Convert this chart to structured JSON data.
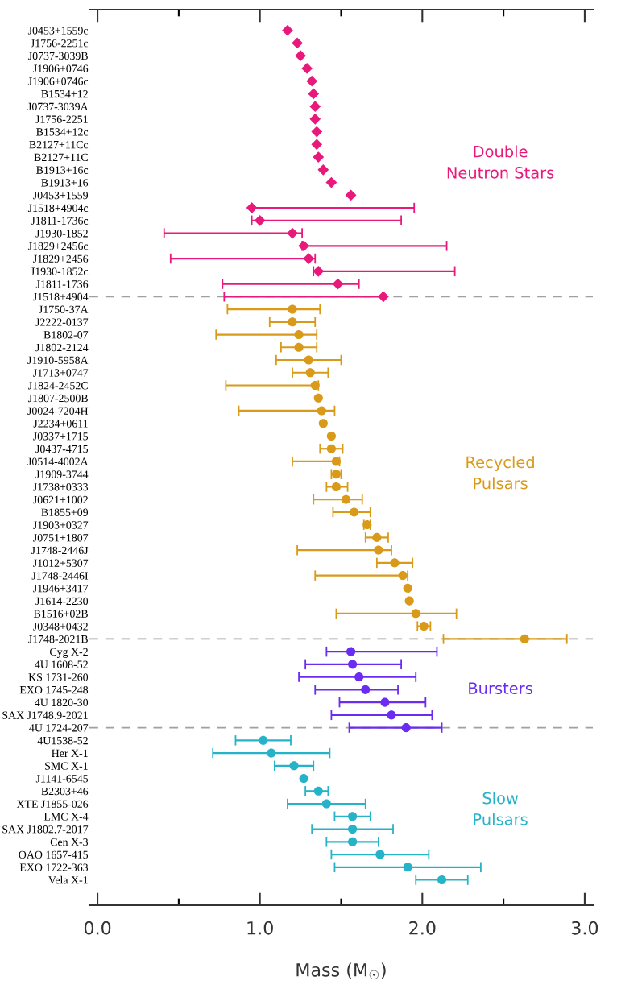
{
  "chart_data": {
    "type": "scatter",
    "orientation": "horizontal",
    "xlabel": "Mass (M$_{☉}$)",
    "categories": [
      "J0453+1559c",
      "J1756-2251c",
      "J0737-3039B",
      "J1906+0746",
      "J1906+0746c",
      "B1534+12",
      "J0737-3039A",
      "J1756-2251",
      "B1534+12c",
      "B2127+11Cc",
      "B2127+11C",
      "B1913+16c",
      "B1913+16",
      "J0453+1559",
      "J1518+4904c",
      "J1811-1736c",
      "J1930-1852",
      "J1829+2456c",
      "J1829+2456",
      "J1930-1852c",
      "J1811-1736",
      "J1518+4904",
      "J1750-37A",
      "J2222-0137",
      "B1802-07",
      "J1802-2124",
      "J1910-5958A",
      "J1713+0747",
      "J1824-2452C",
      "J1807-2500B",
      "J0024-7204H",
      "J2234+0611",
      "J0337+1715",
      "J0437-4715",
      "J0514-4002A",
      "J1909-3744",
      "J1738+0333",
      "J0621+1002",
      "B1855+09",
      "J1903+0327",
      "J0751+1807",
      "J1748-2446J",
      "J1012+5307",
      "J1748-2446I",
      "J1946+3417",
      "J1614-2230",
      "B1516+02B",
      "J0348+0432",
      "J1748-2021B",
      "Cyg X-2",
      "4U 1608-52",
      "KS 1731-260",
      "EXO 1745-248",
      "4U 1820-30",
      "SAX J1748.9-2021",
      "4U 1724-207",
      "4U1538-52",
      "Her X-1",
      "SMC X-1",
      "J1141-6545",
      "B2303+46",
      "XTE J1855-026",
      "LMC X-4",
      "SAX J1802.7-2017",
      "Cen X-3",
      "OAO 1657-415",
      "EXO 1722-363",
      "Vela X-1"
    ],
    "xlim": [
      -0.05,
      3.05
    ],
    "xticks": [
      {
        "value": 0,
        "label": "0.0"
      },
      {
        "value": 0.5,
        "label": null
      },
      {
        "value": 1,
        "label": "1.0"
      },
      {
        "value": 1.5,
        "label": null
      },
      {
        "value": 2,
        "label": "2.0"
      },
      {
        "value": 2.5,
        "label": null
      },
      {
        "value": 3,
        "label": "3.0"
      }
    ],
    "grid": false,
    "legend": false,
    "ref_lines": [
      {
        "axis": "y",
        "value": "J1518+4904",
        "color": "#a0a0a0",
        "line_style": "dashed"
      },
      {
        "axis": "y",
        "value": "J1748-2021B",
        "color": "#a0a0a0",
        "line_style": "dashed"
      },
      {
        "axis": "y",
        "value": "4U 1724-207",
        "color": "#a0a0a0",
        "line_style": "dashed"
      }
    ],
    "series": [
      {
        "name": "Double\nNeutron Stars",
        "color": "#e8197a",
        "marker": "diamond",
        "values": [
          1.17,
          1.23,
          1.25,
          1.29,
          1.32,
          1.33,
          1.34,
          1.34,
          1.35,
          1.35,
          1.36,
          1.39,
          1.44,
          1.56,
          0.95,
          1.0,
          1.2,
          1.27,
          1.3,
          1.36,
          1.48,
          1.76,
          null,
          null,
          null,
          null,
          null,
          null,
          null,
          null,
          null,
          null,
          null,
          null,
          null,
          null,
          null,
          null,
          null,
          null,
          null,
          null,
          null,
          null,
          null,
          null,
          null,
          null,
          null,
          null,
          null,
          null,
          null,
          null,
          null,
          null,
          null,
          null,
          null,
          null,
          null,
          null,
          null,
          null,
          null,
          null,
          null,
          null
        ],
        "errors": [
          null,
          null,
          null,
          null,
          null,
          null,
          null,
          null,
          null,
          null,
          null,
          null,
          null,
          null,
          [
            0.95,
            1.95
          ],
          [
            0.95,
            1.87
          ],
          [
            0.41,
            1.26
          ],
          [
            1.26,
            2.15
          ],
          [
            0.45,
            1.34
          ],
          [
            1.33,
            2.2
          ],
          [
            0.77,
            1.61
          ],
          [
            0.78,
            1.76
          ],
          null,
          null,
          null,
          null,
          null,
          null,
          null,
          null,
          null,
          null,
          null,
          null,
          null,
          null,
          null,
          null,
          null,
          null,
          null,
          null,
          null,
          null,
          null,
          null,
          null,
          null,
          null,
          null,
          null,
          null,
          null,
          null,
          null,
          null,
          null,
          null,
          null,
          null,
          null,
          null,
          null,
          null,
          null,
          null,
          null,
          null
        ]
      },
      {
        "name": "Recycled\nPulsars",
        "color": "#d99a1a",
        "marker": "circle",
        "values": [
          null,
          null,
          null,
          null,
          null,
          null,
          null,
          null,
          null,
          null,
          null,
          null,
          null,
          null,
          null,
          null,
          null,
          null,
          null,
          null,
          null,
          null,
          1.2,
          1.2,
          1.24,
          1.24,
          1.3,
          1.31,
          1.34,
          1.36,
          1.38,
          1.39,
          1.44,
          1.44,
          1.47,
          1.47,
          1.47,
          1.53,
          1.58,
          1.66,
          1.72,
          1.73,
          1.83,
          1.88,
          1.91,
          1.92,
          1.96,
          2.01,
          2.63,
          null,
          null,
          null,
          null,
          null,
          null,
          null,
          null,
          null,
          null,
          null,
          null,
          null,
          null,
          null,
          null,
          null,
          null,
          null
        ],
        "errors": [
          null,
          null,
          null,
          null,
          null,
          null,
          null,
          null,
          null,
          null,
          null,
          null,
          null,
          null,
          null,
          null,
          null,
          null,
          null,
          null,
          null,
          null,
          [
            0.8,
            1.37
          ],
          0.14,
          [
            0.73,
            1.35
          ],
          0.11,
          0.2,
          0.11,
          [
            0.79,
            1.36
          ],
          null,
          [
            0.87,
            1.46
          ],
          null,
          null,
          0.07,
          [
            1.2,
            1.49
          ],
          0.03,
          [
            1.41,
            1.54
          ],
          [
            1.33,
            1.63
          ],
          [
            1.45,
            1.68
          ],
          0.02,
          0.07,
          [
            1.23,
            1.81
          ],
          0.11,
          [
            1.34,
            1.91
          ],
          null,
          null,
          [
            1.47,
            2.21
          ],
          0.04,
          [
            2.13,
            2.89
          ],
          null,
          null,
          null,
          null,
          null,
          null,
          null,
          null,
          null,
          null,
          null,
          null,
          null,
          null,
          null,
          null,
          null,
          null,
          null
        ]
      },
      {
        "name": "Bursters",
        "color": "#6a2cf0",
        "marker": "circle",
        "values": [
          null,
          null,
          null,
          null,
          null,
          null,
          null,
          null,
          null,
          null,
          null,
          null,
          null,
          null,
          null,
          null,
          null,
          null,
          null,
          null,
          null,
          null,
          null,
          null,
          null,
          null,
          null,
          null,
          null,
          null,
          null,
          null,
          null,
          null,
          null,
          null,
          null,
          null,
          null,
          null,
          null,
          null,
          null,
          null,
          null,
          null,
          null,
          null,
          null,
          1.56,
          1.57,
          1.61,
          1.65,
          1.77,
          1.81,
          1.9,
          null,
          null,
          null,
          null,
          null,
          null,
          null,
          null,
          null,
          null,
          null,
          null
        ],
        "errors": [
          null,
          null,
          null,
          null,
          null,
          null,
          null,
          null,
          null,
          null,
          null,
          null,
          null,
          null,
          null,
          null,
          null,
          null,
          null,
          null,
          null,
          null,
          null,
          null,
          null,
          null,
          null,
          null,
          null,
          null,
          null,
          null,
          null,
          null,
          null,
          null,
          null,
          null,
          null,
          null,
          null,
          null,
          null,
          null,
          null,
          null,
          null,
          null,
          null,
          [
            1.41,
            2.09
          ],
          [
            1.28,
            1.87
          ],
          [
            1.24,
            1.96
          ],
          [
            1.34,
            1.85
          ],
          [
            1.49,
            2.02
          ],
          [
            1.44,
            2.06
          ],
          [
            1.55,
            2.12
          ],
          null,
          null,
          null,
          null,
          null,
          null,
          null,
          null,
          null,
          null,
          null,
          null
        ]
      },
      {
        "name": "Slow\nPulsars",
        "color": "#26b3c8",
        "marker": "circle",
        "values": [
          null,
          null,
          null,
          null,
          null,
          null,
          null,
          null,
          null,
          null,
          null,
          null,
          null,
          null,
          null,
          null,
          null,
          null,
          null,
          null,
          null,
          null,
          null,
          null,
          null,
          null,
          null,
          null,
          null,
          null,
          null,
          null,
          null,
          null,
          null,
          null,
          null,
          null,
          null,
          null,
          null,
          null,
          null,
          null,
          null,
          null,
          null,
          null,
          null,
          null,
          null,
          null,
          null,
          null,
          null,
          null,
          1.02,
          1.07,
          1.21,
          1.27,
          1.36,
          1.41,
          1.57,
          1.57,
          1.57,
          1.74,
          1.91,
          2.12
        ],
        "errors": [
          null,
          null,
          null,
          null,
          null,
          null,
          null,
          null,
          null,
          null,
          null,
          null,
          null,
          null,
          null,
          null,
          null,
          null,
          null,
          null,
          null,
          null,
          null,
          null,
          null,
          null,
          null,
          null,
          null,
          null,
          null,
          null,
          null,
          null,
          null,
          null,
          null,
          null,
          null,
          null,
          null,
          null,
          null,
          null,
          null,
          null,
          null,
          null,
          null,
          null,
          null,
          null,
          null,
          null,
          null,
          null,
          0.17,
          0.36,
          0.12,
          null,
          [
            1.28,
            1.42
          ],
          0.24,
          0.11,
          0.25,
          0.16,
          0.3,
          0.45,
          0.16
        ]
      }
    ]
  }
}
